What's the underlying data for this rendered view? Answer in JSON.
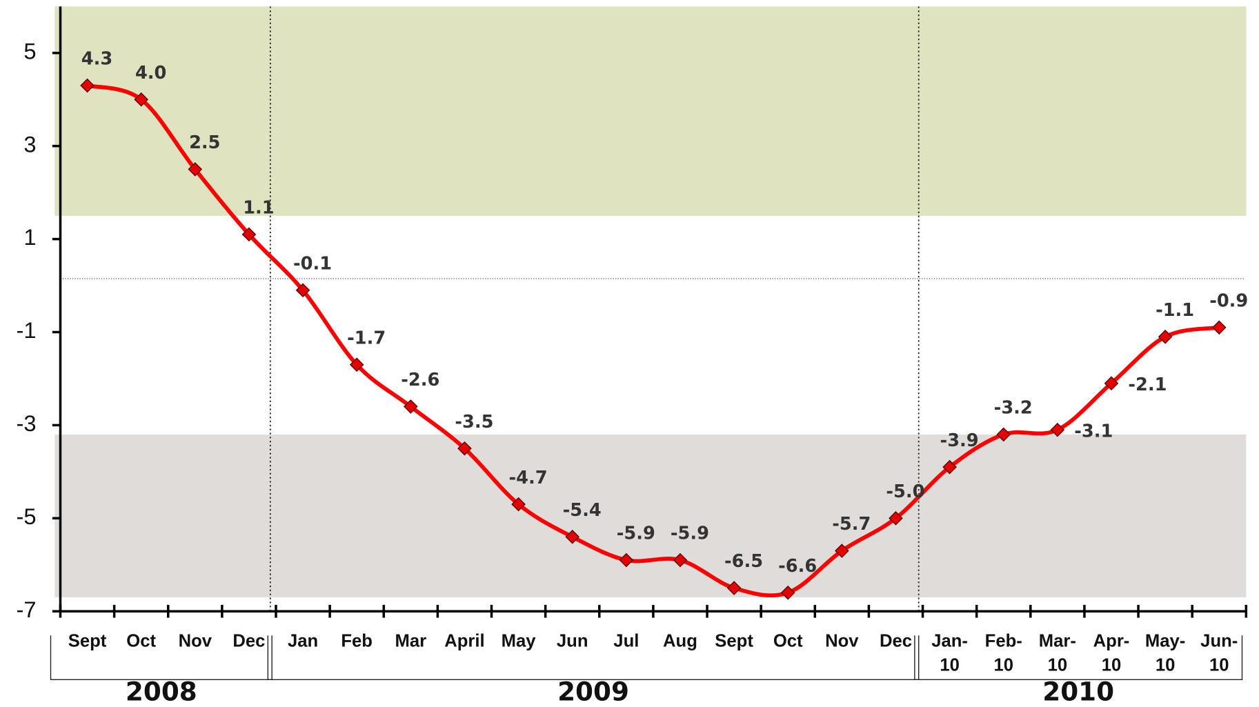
{
  "chart_data": {
    "type": "line",
    "categories": [
      "Sept",
      "Oct",
      "Nov",
      "Dec",
      "Jan",
      "Feb",
      "Mar",
      "April",
      "May",
      "Jun",
      "Jul",
      "Aug",
      "Sept",
      "Oct",
      "Nov",
      "Dec",
      "Jan-10",
      "Feb-10",
      "Mar-10",
      "Apr-10",
      "May-10",
      "Jun-10"
    ],
    "groups": [
      {
        "label": "2008",
        "span": [
          0,
          4
        ]
      },
      {
        "label": "2009",
        "span": [
          4,
          16
        ]
      },
      {
        "label": "2010",
        "span": [
          16,
          22
        ]
      }
    ],
    "series": [
      {
        "color": "#ff0000",
        "values": [
          4.3,
          4.0,
          2.5,
          1.1,
          -0.1,
          -1.7,
          -2.6,
          -3.5,
          -4.7,
          -5.4,
          -5.9,
          -5.9,
          -6.5,
          -6.6,
          -5.7,
          -5.0,
          -3.9,
          -3.2,
          -3.1,
          -2.1,
          -1.1,
          -0.9
        ],
        "value_labels": [
          "4.3",
          "4.0",
          "2.5",
          "1.1",
          "-0.1",
          "-1.7",
          "-2.6",
          "-3.5",
          "-4.7",
          "-5.4",
          "-5.9",
          "-5.9",
          "-6.5",
          "-6.6",
          "-5.7",
          "-5.0",
          "-3.9",
          "-3.2",
          "-3.1",
          "-2.1",
          "-1.1",
          "-0.9"
        ]
      }
    ],
    "ylim": [
      -7,
      6
    ],
    "yticks": [
      5,
      3,
      1,
      -1,
      -3,
      -5,
      -7
    ],
    "bands": [
      {
        "from": 1.5,
        "to": 6,
        "color": "#dfe3bf"
      },
      {
        "from": -6.7,
        "to": -3.2,
        "color": "#e0dcd9"
      }
    ],
    "reference_line": 0.15
  }
}
